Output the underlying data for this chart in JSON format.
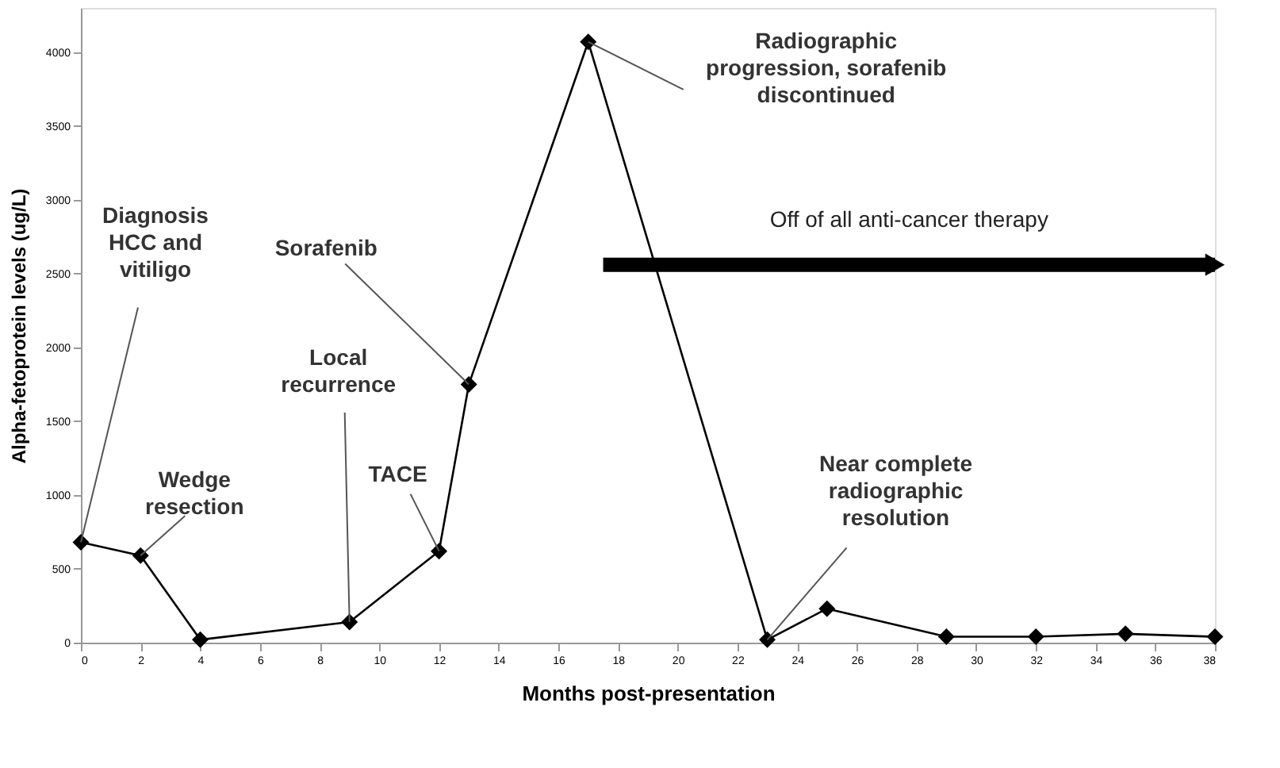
{
  "chart_data": {
    "type": "line",
    "xlabel": "Months post-presentation",
    "ylabel": "Alpha-fetoprotein levels (ug/L)",
    "x": [
      0,
      2,
      4,
      9,
      12,
      13,
      17,
      23,
      25,
      29,
      32,
      35,
      38
    ],
    "series": [
      {
        "color": "#000000",
        "values": [
          680,
          590,
          20,
          140,
          620,
          1750,
          4070,
          20,
          230,
          40,
          40,
          60,
          40
        ]
      },
      {
        "type": "line",
        "color": "#000000",
        "x": [
          17.5,
          38
        ],
        "values": [
          2560,
          2560
        ],
        "marker": "triangle"
      }
    ],
    "xlim": [
      0,
      38
    ],
    "xticks": [
      0,
      2,
      4,
      6,
      8,
      10,
      12,
      14,
      16,
      18,
      20,
      22,
      24,
      26,
      28,
      30,
      32,
      34,
      36,
      38
    ],
    "ylim": [
      0,
      4300
    ],
    "yticks": [
      0,
      500,
      1000,
      1500,
      2000,
      2500,
      3000,
      3500,
      4000
    ],
    "marker": "diamond",
    "line_style": "solid",
    "grid": false,
    "annotations": [
      {
        "text": "Diagnosis\nHCC and\nvitiligo",
        "x": 0,
        "y": 680
      },
      {
        "text": "Wedge\nresection",
        "x": 2,
        "y": 590
      },
      {
        "text": "Local\nrecurrence",
        "x": 9,
        "y": 140
      },
      {
        "text": "TACE",
        "x": 12,
        "y": 620
      },
      {
        "text": "Sorafenib",
        "x": 13,
        "y": 1750
      },
      {
        "text": "Radiographic\nprogression, sorafenib\ndiscontinued",
        "x": 17,
        "y": 4070
      },
      {
        "text": "Near complete\nradiographic\nresolution",
        "x": 23,
        "y": 20
      },
      "Off of all anti-cancer therapy"
    ]
  }
}
